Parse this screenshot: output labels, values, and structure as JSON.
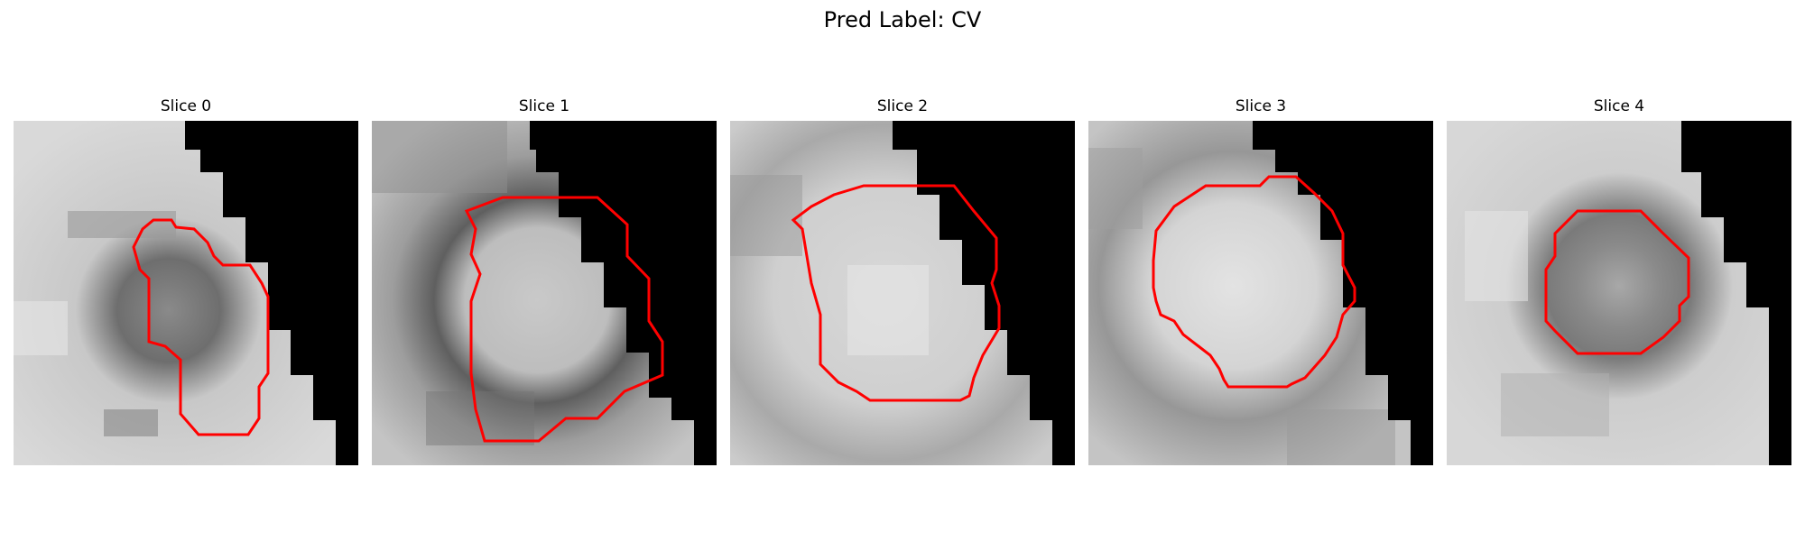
{
  "suptitle": "Pred Label: CV",
  "colors": {
    "contour": "#ff0000",
    "background": "#ffffff",
    "mask": "#000000"
  },
  "slices": [
    {
      "title": "Slice 0"
    },
    {
      "title": "Slice 1"
    },
    {
      "title": "Slice 2"
    },
    {
      "title": "Slice 3"
    },
    {
      "title": "Slice 4"
    }
  ]
}
